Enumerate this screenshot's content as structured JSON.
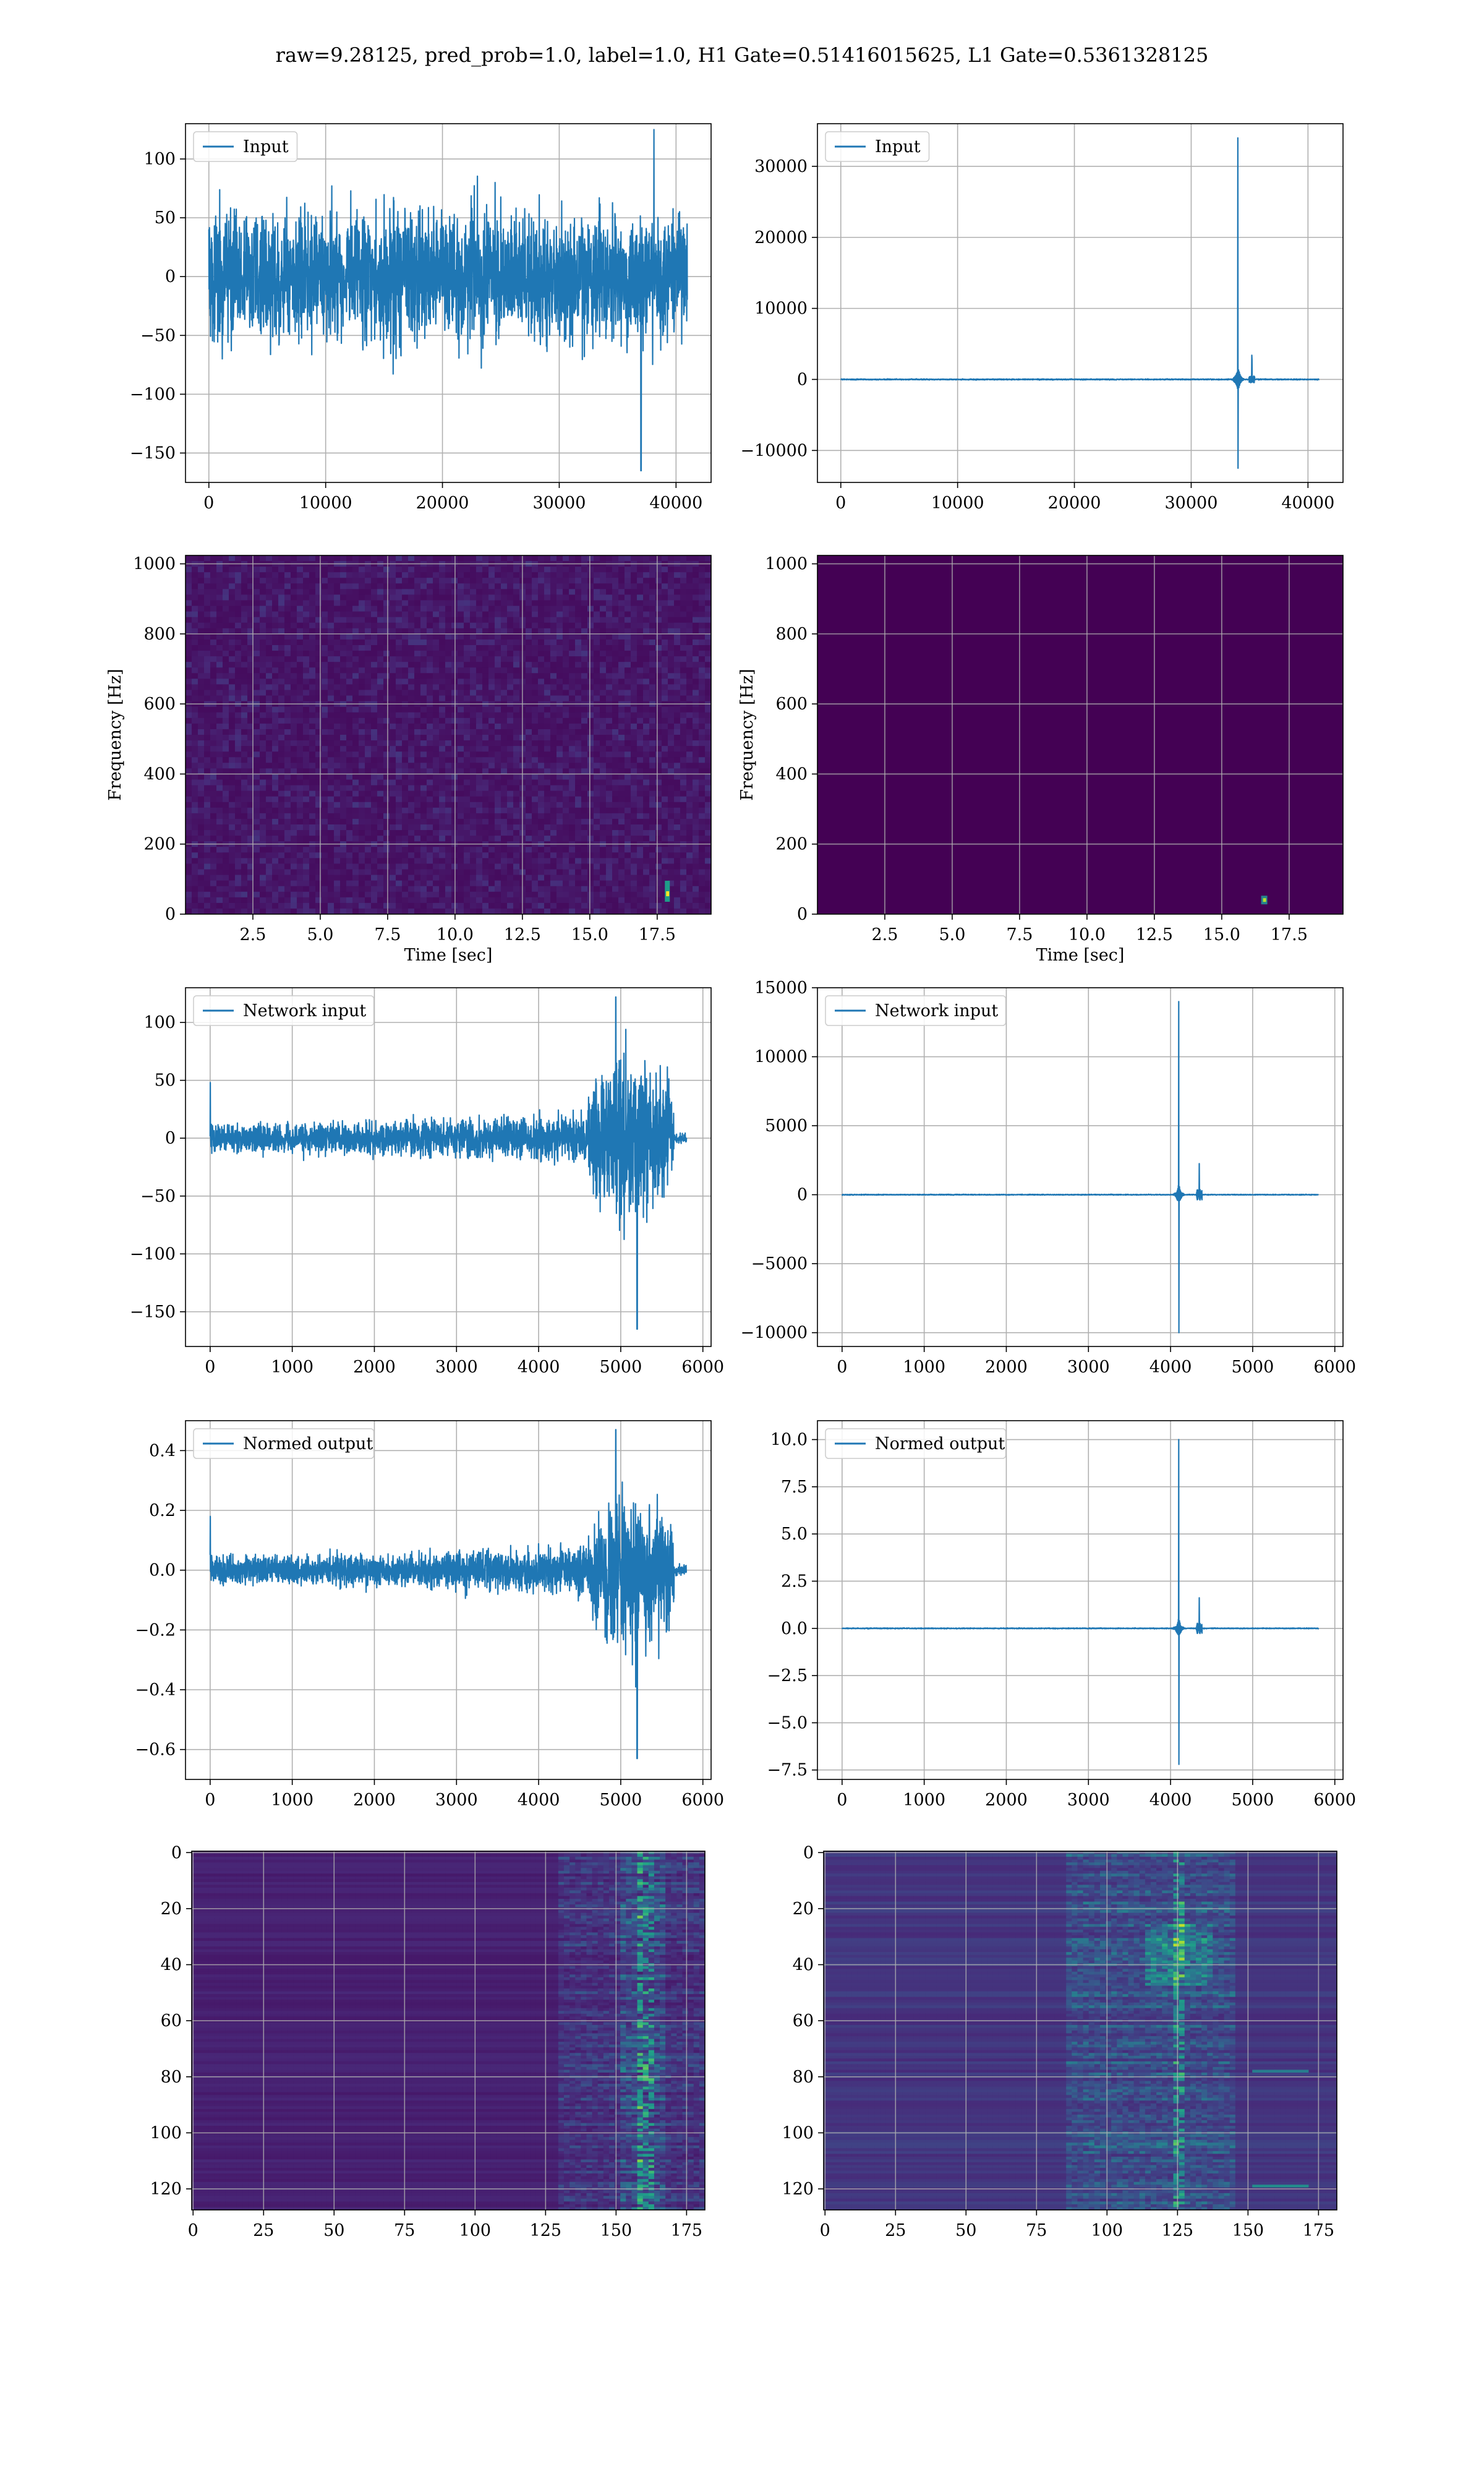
{
  "figure": {
    "title": "raw=9.28125, pred_prob=1.0, label=1.0, H1 Gate=0.51416015625, L1 Gate=0.5361328125"
  },
  "colors": {
    "line": "#1f77b4",
    "grid": "#b0b0b0",
    "viridis_dark": "#440154",
    "viridis_mid": "#21918c",
    "viridis_bright": "#fde725"
  },
  "chart_data": [
    {
      "id": "h1-input",
      "type": "line",
      "series": [
        {
          "name": "Input",
          "description": "noise-like strain, amplitude mostly within about ±75, spike to -165 near x=37000"
        }
      ],
      "legend": "top-left",
      "xlim": [
        -2000,
        43000
      ],
      "ylim": [
        -175,
        130
      ],
      "xticks": [
        0,
        10000,
        20000,
        30000,
        40000
      ],
      "yticks": [
        -150,
        -100,
        -50,
        0,
        50,
        100
      ],
      "xlabel": "",
      "ylabel": "",
      "grid": true,
      "signal": {
        "kind": "noise",
        "xmax": 40960,
        "amp": 60,
        "spike": 37000,
        "spike_val": -165,
        "peak_val": 125
      }
    },
    {
      "id": "l1-input",
      "type": "line",
      "series": [
        {
          "name": "Input",
          "description": "flat near 0 with sharp spike to about 34000 and -12500 near x=34000"
        }
      ],
      "legend": "top-left",
      "xlim": [
        -2000,
        43000
      ],
      "ylim": [
        -14500,
        36000
      ],
      "xticks": [
        0,
        10000,
        20000,
        30000,
        40000
      ],
      "yticks": [
        -10000,
        0,
        10000,
        20000,
        30000
      ],
      "xlabel": "",
      "ylabel": "",
      "grid": true,
      "signal": {
        "kind": "spike",
        "xmax": 40960,
        "spike": 34000,
        "up": 34000,
        "down": -12500,
        "secondary": 35200,
        "secondary_up": 3000
      }
    },
    {
      "id": "h1-spectrogram",
      "type": "heatmap",
      "xlim": [
        0,
        19.5
      ],
      "ylim": [
        0,
        1024
      ],
      "xticks": [
        2.5,
        5.0,
        7.5,
        10.0,
        12.5,
        15.0,
        17.5
      ],
      "yticks": [
        0,
        200,
        400,
        600,
        800,
        1000
      ],
      "xlabel": "Time [sec]",
      "ylabel": "Frequency [Hz]",
      "grid": true,
      "colormap": "viridis",
      "pattern": "uniform noise, faint bright spot near t=17.9 s, f=60 Hz"
    },
    {
      "id": "l1-spectrogram",
      "type": "heatmap",
      "xlim": [
        0,
        19.5
      ],
      "ylim": [
        0,
        1024
      ],
      "xticks": [
        2.5,
        5.0,
        7.5,
        10.0,
        12.5,
        15.0,
        17.5
      ],
      "yticks": [
        0,
        200,
        400,
        600,
        800,
        1000
      ],
      "xlabel": "Time [sec]",
      "ylabel": "Frequency [Hz]",
      "grid": true,
      "colormap": "viridis",
      "pattern": "dark background, single bright spot near t=16.6 s, f=35 Hz"
    },
    {
      "id": "h1-network-input",
      "type": "line",
      "series": [
        {
          "name": "Network input",
          "description": "noise about ±15 growing to ±100 near x=4700-5600, minimum -165 near x=5200"
        }
      ],
      "legend": "top-left",
      "xlim": [
        -300,
        6100
      ],
      "ylim": [
        -180,
        130
      ],
      "xticks": [
        0,
        1000,
        2000,
        3000,
        4000,
        5000,
        6000
      ],
      "yticks": [
        -150,
        -100,
        -50,
        0,
        50,
        100
      ],
      "xlabel": "",
      "ylabel": "",
      "grid": true,
      "signal": {
        "kind": "burst",
        "xmax": 5800,
        "base": 12,
        "burst_start": 4600,
        "burst_end": 5650,
        "burst_amp": 75,
        "spike": 5200,
        "spike_val": -165,
        "peak_val": 122
      }
    },
    {
      "id": "l1-network-input",
      "type": "line",
      "series": [
        {
          "name": "Network input",
          "description": "flat near 0, spike to about 14000 and -10000 near x=4100"
        }
      ],
      "legend": "top-left",
      "xlim": [
        -300,
        6100
      ],
      "ylim": [
        -11000,
        15000
      ],
      "xticks": [
        0,
        1000,
        2000,
        3000,
        4000,
        5000,
        6000
      ],
      "yticks": [
        -10000,
        -5000,
        0,
        5000,
        10000,
        15000
      ],
      "xlabel": "",
      "ylabel": "",
      "grid": true,
      "signal": {
        "kind": "spike",
        "xmax": 5800,
        "spike": 4100,
        "up": 14000,
        "down": -10000,
        "secondary": 4350,
        "secondary_up": 2500
      }
    },
    {
      "id": "h1-normed-output",
      "type": "line",
      "series": [
        {
          "name": "Normed output",
          "description": "noise about ±0.05 growing to ±0.3 near x=4700-5600, minimum -0.63 near x=5200"
        }
      ],
      "legend": "top-left",
      "xlim": [
        -300,
        6100
      ],
      "ylim": [
        -0.7,
        0.5
      ],
      "xticks": [
        0,
        1000,
        2000,
        3000,
        4000,
        5000,
        6000
      ],
      "yticks": [
        -0.6,
        -0.4,
        -0.2,
        0.0,
        0.2,
        0.4
      ],
      "xlabel": "",
      "ylabel": "",
      "grid": true,
      "signal": {
        "kind": "burst",
        "xmax": 5800,
        "base": 0.045,
        "burst_start": 4600,
        "burst_end": 5650,
        "burst_amp": 0.27,
        "spike": 5200,
        "spike_val": -0.63,
        "peak_val": 0.47
      }
    },
    {
      "id": "l1-normed-output",
      "type": "line",
      "series": [
        {
          "name": "Normed output",
          "description": "flat near 0, spike to about 10.0 and -7.2 near x=4100"
        }
      ],
      "legend": "top-left",
      "xlim": [
        -300,
        6100
      ],
      "ylim": [
        -8.0,
        11.0
      ],
      "xticks": [
        0,
        1000,
        2000,
        3000,
        4000,
        5000,
        6000
      ],
      "yticks": [
        -7.5,
        -5.0,
        -2.5,
        0.0,
        2.5,
        5.0,
        7.5,
        10.0
      ],
      "xlabel": "",
      "ylabel": "",
      "grid": true,
      "signal": {
        "kind": "spike",
        "xmax": 5800,
        "spike": 4100,
        "up": 10.0,
        "down": -7.2,
        "secondary": 4350,
        "secondary_up": 1.8
      }
    },
    {
      "id": "h1-feature-map",
      "type": "heatmap",
      "xlim": [
        -0.5,
        181.5
      ],
      "ylim": [
        127.5,
        -0.5
      ],
      "xticks": [
        0,
        25,
        50,
        75,
        100,
        125,
        150,
        175
      ],
      "yticks": [
        0,
        20,
        40,
        60,
        80,
        100,
        120
      ],
      "xlabel": "",
      "ylabel": "",
      "grid": true,
      "colormap": "viridis",
      "pattern": "mostly dark rows, activations increase near columns 125-165, bright band near column 160"
    },
    {
      "id": "l1-feature-map",
      "type": "heatmap",
      "xlim": [
        -0.5,
        181.5
      ],
      "ylim": [
        127.5,
        -0.5
      ],
      "xticks": [
        0,
        25,
        50,
        75,
        100,
        125,
        150,
        175
      ],
      "yticks": [
        0,
        20,
        40,
        60,
        80,
        100,
        120
      ],
      "xlabel": "",
      "ylabel": "",
      "grid": true,
      "colormap": "viridis",
      "pattern": "striped rows with strong activations between columns 90-140, bright spots near column 125 rows 30-45"
    }
  ]
}
